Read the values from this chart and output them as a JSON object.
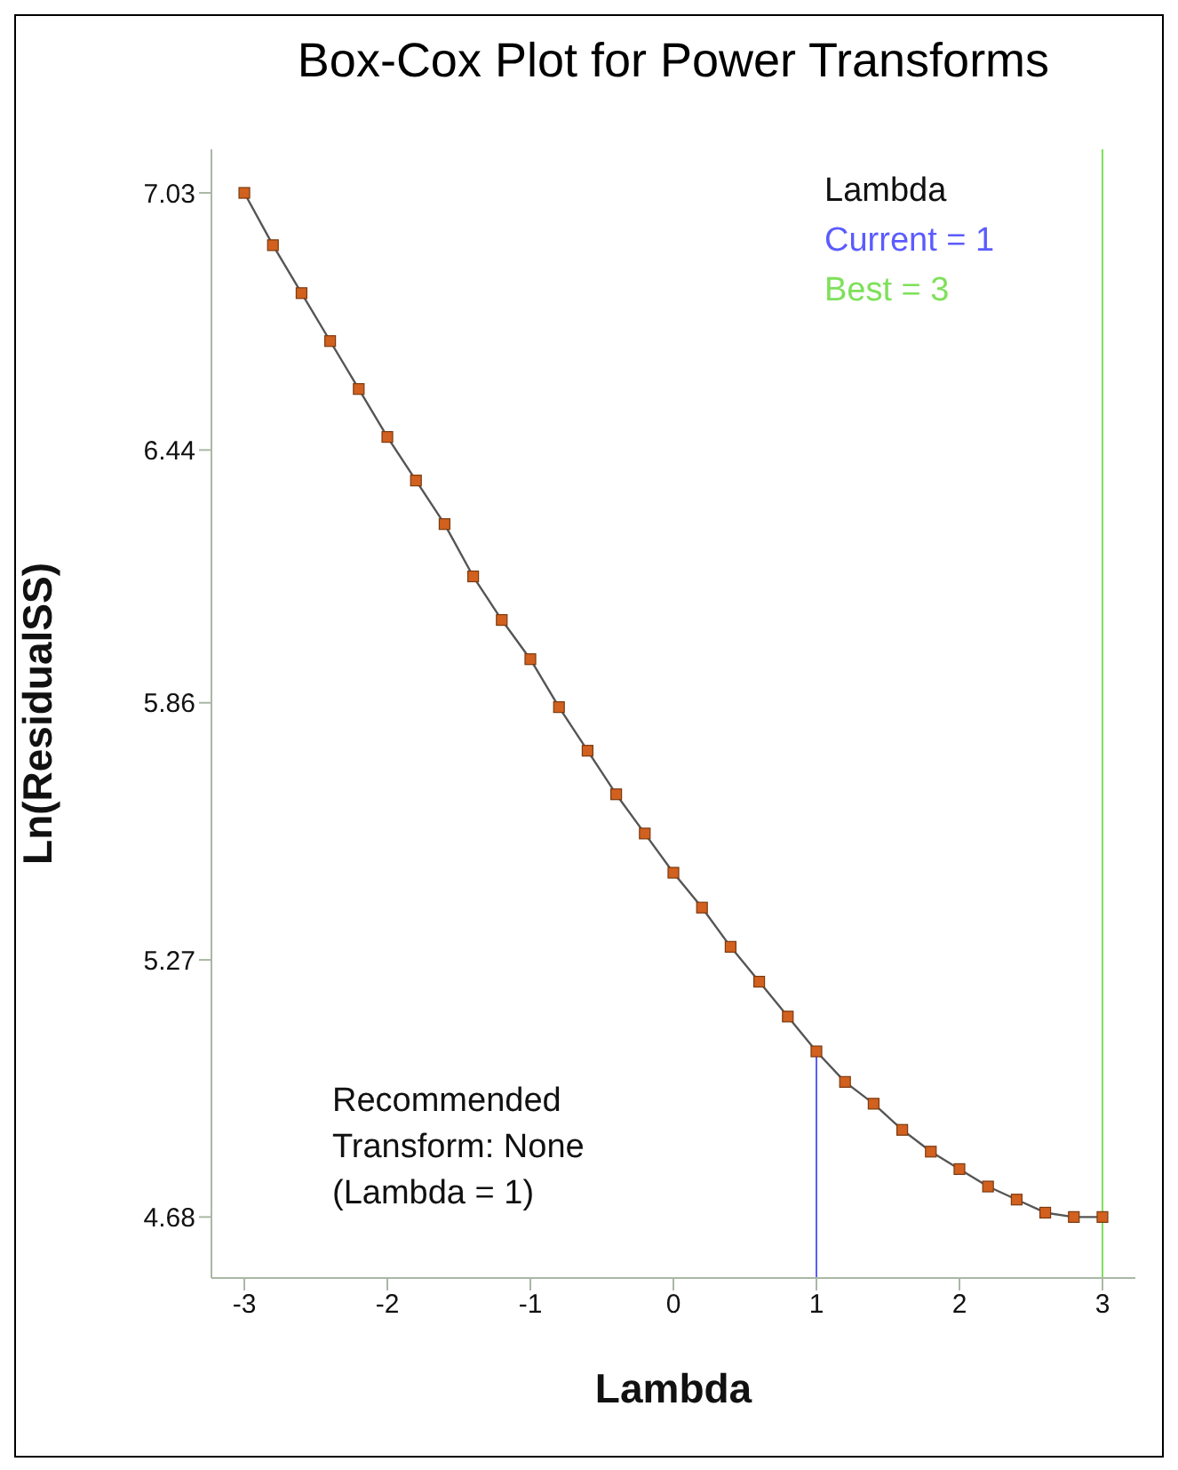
{
  "chart_data": {
    "type": "line",
    "title": "Box-Cox Plot for Power Transforms",
    "xlabel": "Lambda",
    "ylabel": "Ln(ResidualSS)",
    "x": [
      -3,
      -2.8,
      -2.6,
      -2.4,
      -2.2,
      -2,
      -1.8,
      -1.6,
      -1.4,
      -1.2,
      -1,
      -0.8,
      -0.6,
      -0.4,
      -0.2,
      0,
      0.2,
      0.4,
      0.6,
      0.8,
      1,
      1.2,
      1.4,
      1.6,
      1.8,
      2,
      2.2,
      2.4,
      2.6,
      2.8,
      3
    ],
    "series": [
      {
        "color": "#d2601e",
        "values": [
          7.03,
          6.91,
          6.8,
          6.69,
          6.58,
          6.47,
          6.37,
          6.27,
          6.15,
          6.05,
          5.96,
          5.85,
          5.75,
          5.65,
          5.56,
          5.47,
          5.39,
          5.3,
          5.22,
          5.14,
          5.06,
          4.99,
          4.94,
          4.88,
          4.83,
          4.79,
          4.75,
          4.72,
          4.69,
          4.68,
          4.68
        ]
      }
    ],
    "xlim": [
      -3.23,
      3.23
    ],
    "xticks": [
      -3,
      -2,
      -1,
      0,
      1,
      2,
      3
    ],
    "ylim": [
      4.54,
      7.13
    ],
    "yticks": [
      7.03,
      6.44,
      5.86,
      5.27,
      4.68
    ],
    "marker": "square",
    "legend_title": "Lambda",
    "ref_lines": [
      {
        "axis": "x",
        "value": 1,
        "label": "Current = 1",
        "color": "#5b5bff"
      },
      {
        "axis": "x",
        "value": 3,
        "label": "Best = 3",
        "color": "#7ee05a"
      }
    ],
    "annotations": [
      "Recommended\nTransform: None\n(Lambda = 1)"
    ]
  }
}
